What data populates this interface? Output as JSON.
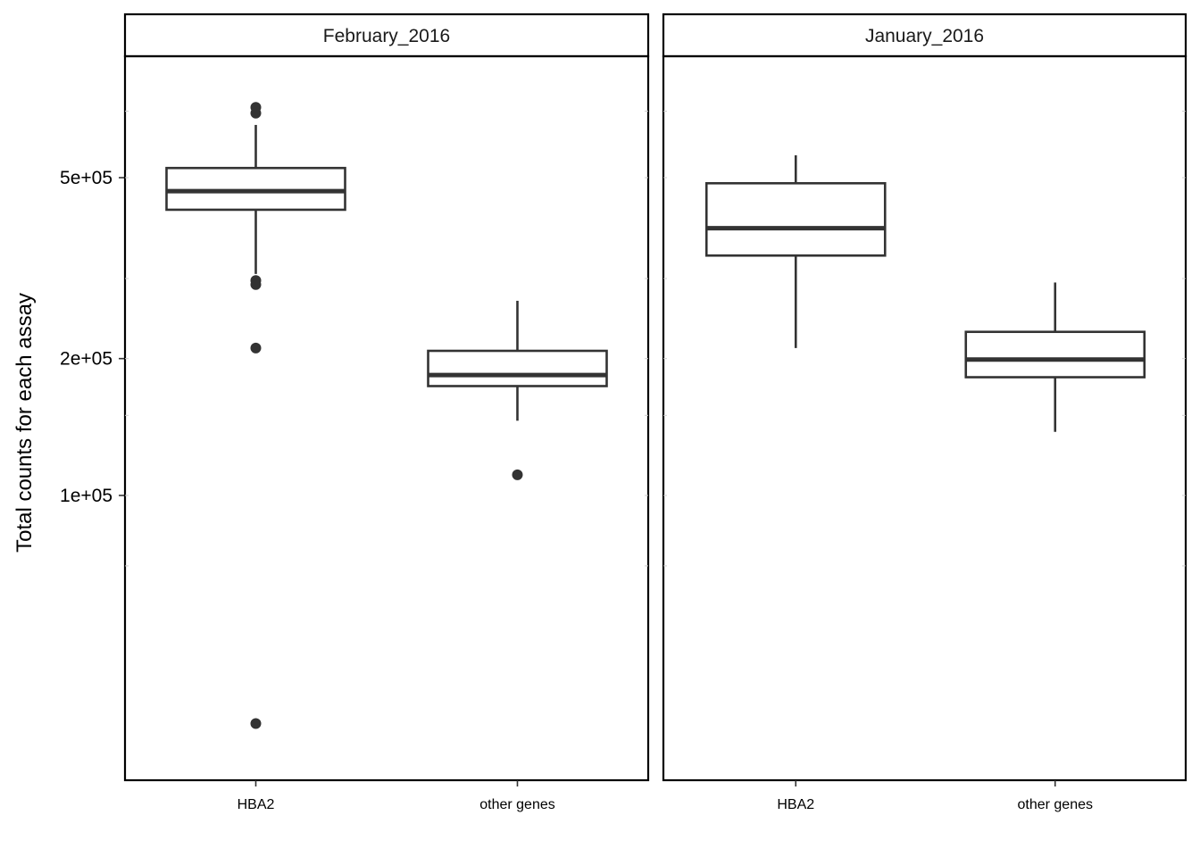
{
  "chart_data": {
    "type": "boxplot",
    "ylabel": "Total counts for each assay",
    "y_scale": "log10",
    "y_ticks": [
      100000,
      200000,
      500000
    ],
    "y_tick_labels": [
      "1e+05",
      "2e+05",
      "5e+05"
    ],
    "categories": [
      "HBA2",
      "other genes"
    ],
    "facets": [
      {
        "title": "February_2016",
        "boxes": [
          {
            "category": "HBA2",
            "lower_whisker": 307000,
            "q1": 425000,
            "median": 467000,
            "q3": 525000,
            "upper_whisker": 653000,
            "outliers": [
              714000,
              693000,
              297000,
              291000,
              211000,
              31500
            ]
          },
          {
            "category": "other genes",
            "lower_whisker": 146000,
            "q1": 174000,
            "median": 184000,
            "q3": 208000,
            "upper_whisker": 268000,
            "outliers": [
              111000
            ]
          }
        ]
      },
      {
        "title": "January_2016",
        "boxes": [
          {
            "category": "HBA2",
            "lower_whisker": 211000,
            "q1": 337000,
            "median": 387000,
            "q3": 486000,
            "upper_whisker": 560000,
            "outliers": []
          },
          {
            "category": "other genes",
            "lower_whisker": 138000,
            "q1": 182000,
            "median": 199000,
            "q3": 229000,
            "upper_whisker": 294000,
            "outliers": []
          }
        ]
      }
    ]
  }
}
